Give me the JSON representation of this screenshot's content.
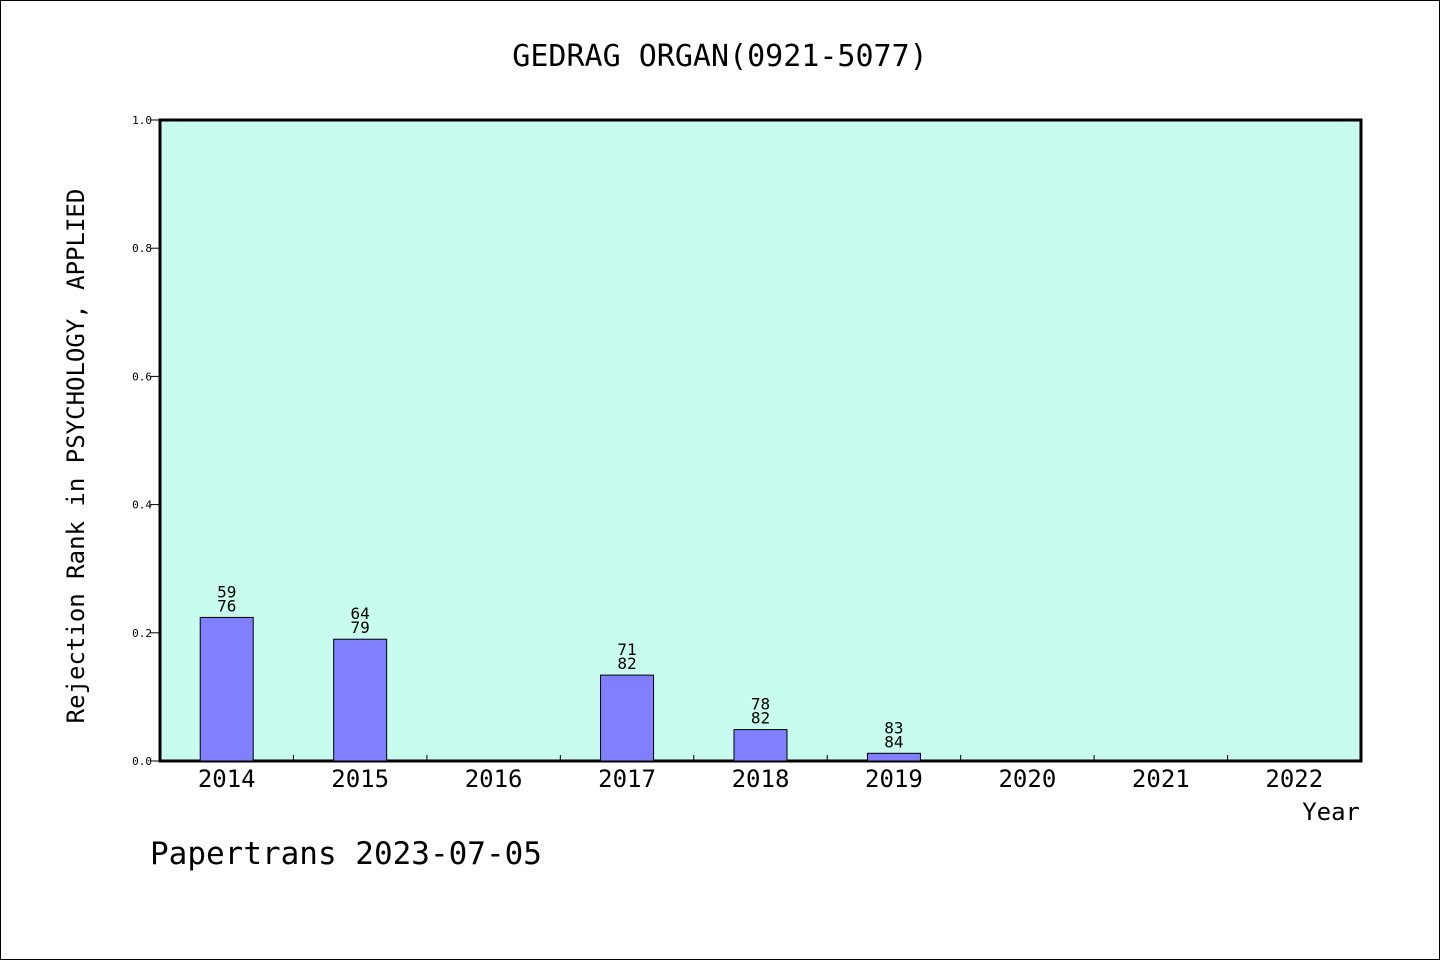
{
  "chart_data": {
    "type": "bar",
    "title": "GEDRAG ORGAN(0921-5077)",
    "xlabel": "Year",
    "ylabel": "Rejection Rank in PSYCHOLOGY, APPLIED",
    "ylim": [
      0,
      1.0
    ],
    "yticks": [
      "0.0",
      "0.2",
      "0.4",
      "0.6",
      "0.8",
      "1.0"
    ],
    "categories": [
      "2014",
      "2015",
      "2016",
      "2017",
      "2018",
      "2019",
      "2020",
      "2021",
      "2022"
    ],
    "values": [
      0.224,
      0.19,
      null,
      0.134,
      0.049,
      0.012,
      null,
      null,
      null
    ],
    "labels_top": [
      "59",
      "64",
      "",
      "71",
      "78",
      "83",
      "",
      "",
      ""
    ],
    "labels_bottom": [
      "76",
      "79",
      "",
      "82",
      "82",
      "84",
      "",
      "",
      ""
    ],
    "grid": false,
    "colors": {
      "plot_background": "#c8fcee",
      "bar_fill": "#8080ff",
      "bar_stroke": "#000000"
    }
  },
  "footer": {
    "credit": "Papertrans 2023-07-05"
  }
}
